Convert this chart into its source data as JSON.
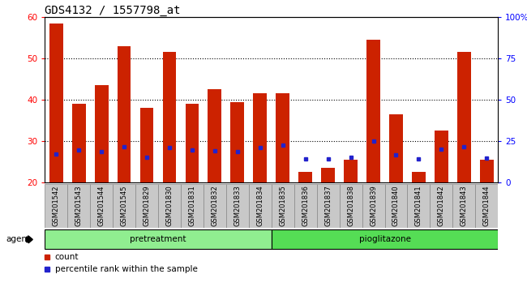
{
  "title": "GDS4132 / 1557798_at",
  "samples": [
    "GSM201542",
    "GSM201543",
    "GSM201544",
    "GSM201545",
    "GSM201829",
    "GSM201830",
    "GSM201831",
    "GSM201832",
    "GSM201833",
    "GSM201834",
    "GSM201835",
    "GSM201836",
    "GSM201837",
    "GSM201838",
    "GSM201839",
    "GSM201840",
    "GSM201841",
    "GSM201842",
    "GSM201843",
    "GSM201844"
  ],
  "count_values": [
    58.5,
    39.0,
    43.5,
    53.0,
    38.0,
    51.5,
    39.0,
    42.5,
    39.5,
    41.5,
    41.5,
    22.5,
    23.5,
    25.5,
    54.5,
    36.5,
    22.5,
    32.5,
    51.5,
    25.5
  ],
  "percentile_values": [
    17.0,
    19.5,
    18.5,
    21.5,
    15.0,
    21.0,
    19.5,
    19.0,
    18.5,
    21.0,
    22.5,
    14.0,
    14.0,
    15.0,
    25.0,
    16.5,
    14.0,
    20.0,
    21.5,
    14.5
  ],
  "groups": [
    {
      "name": "pretreatment",
      "start": 0,
      "end": 10,
      "color": "#90EE90"
    },
    {
      "name": "pioglitazone",
      "start": 10,
      "end": 20,
      "color": "#55DD55"
    }
  ],
  "ylim_left": [
    20,
    60
  ],
  "ylim_right": [
    0,
    100
  ],
  "yticks_left": [
    20,
    30,
    40,
    50,
    60
  ],
  "yticks_right": [
    0,
    25,
    50,
    75,
    100
  ],
  "ytick_labels_right": [
    "0",
    "25",
    "50",
    "75",
    "100%"
  ],
  "bar_color": "#CC2200",
  "marker_color": "#2222CC",
  "bg_color": "#C8C8C8",
  "title_fontsize": 10,
  "agent_label": "agent",
  "legend_count": "count",
  "legend_pct": "percentile rank within the sample"
}
